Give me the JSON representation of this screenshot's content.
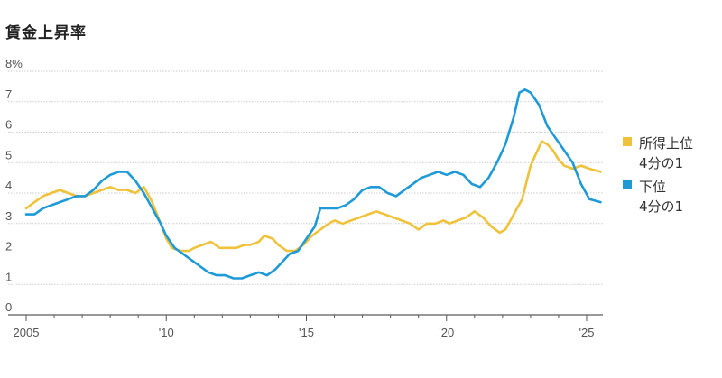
{
  "title": "賃金上昇率",
  "chart_data": {
    "type": "line",
    "title": "賃金上昇率",
    "xlim": [
      2005,
      2025.7
    ],
    "ylim": [
      0,
      8
    ],
    "x_ticks": [
      {
        "value": 2005,
        "label": "2005"
      },
      {
        "value": 2010,
        "label": "'10"
      },
      {
        "value": 2015,
        "label": "'15"
      },
      {
        "value": 2020,
        "label": "'20"
      },
      {
        "value": 2025,
        "label": "'25"
      }
    ],
    "y_ticks": [
      {
        "value": 0,
        "label": "0"
      },
      {
        "value": 1,
        "label": "1"
      },
      {
        "value": 2,
        "label": "2"
      },
      {
        "value": 3,
        "label": "3"
      },
      {
        "value": 4,
        "label": "4"
      },
      {
        "value": 5,
        "label": "5"
      },
      {
        "value": 6,
        "label": "6"
      },
      {
        "value": 7,
        "label": "7"
      },
      {
        "value": 8,
        "label": "8%"
      }
    ],
    "grid": "horizontal",
    "legend_position": "right",
    "series": [
      {
        "name": "所得上位\n4分の1",
        "color": "#f0c23b",
        "points": [
          [
            2005.0,
            3.5
          ],
          [
            2005.3,
            3.7
          ],
          [
            2005.6,
            3.9
          ],
          [
            2005.9,
            4.0
          ],
          [
            2006.2,
            4.1
          ],
          [
            2006.5,
            4.0
          ],
          [
            2006.8,
            3.9
          ],
          [
            2007.1,
            3.9
          ],
          [
            2007.4,
            4.0
          ],
          [
            2007.7,
            4.1
          ],
          [
            2008.0,
            4.2
          ],
          [
            2008.3,
            4.1
          ],
          [
            2008.6,
            4.1
          ],
          [
            2008.9,
            4.0
          ],
          [
            2009.2,
            4.2
          ],
          [
            2009.5,
            3.7
          ],
          [
            2009.8,
            3.0
          ],
          [
            2010.0,
            2.5
          ],
          [
            2010.2,
            2.2
          ],
          [
            2010.5,
            2.1
          ],
          [
            2010.8,
            2.1
          ],
          [
            2011.0,
            2.2
          ],
          [
            2011.3,
            2.3
          ],
          [
            2011.6,
            2.4
          ],
          [
            2011.9,
            2.2
          ],
          [
            2012.2,
            2.2
          ],
          [
            2012.5,
            2.2
          ],
          [
            2012.8,
            2.3
          ],
          [
            2013.0,
            2.3
          ],
          [
            2013.3,
            2.4
          ],
          [
            2013.5,
            2.6
          ],
          [
            2013.8,
            2.5
          ],
          [
            2014.0,
            2.3
          ],
          [
            2014.3,
            2.1
          ],
          [
            2014.6,
            2.1
          ],
          [
            2014.9,
            2.3
          ],
          [
            2015.2,
            2.6
          ],
          [
            2015.5,
            2.8
          ],
          [
            2015.8,
            3.0
          ],
          [
            2016.0,
            3.1
          ],
          [
            2016.3,
            3.0
          ],
          [
            2016.6,
            3.1
          ],
          [
            2016.9,
            3.2
          ],
          [
            2017.2,
            3.3
          ],
          [
            2017.5,
            3.4
          ],
          [
            2017.8,
            3.3
          ],
          [
            2018.1,
            3.2
          ],
          [
            2018.4,
            3.1
          ],
          [
            2018.7,
            3.0
          ],
          [
            2019.0,
            2.8
          ],
          [
            2019.3,
            3.0
          ],
          [
            2019.6,
            3.0
          ],
          [
            2019.9,
            3.1
          ],
          [
            2020.1,
            3.0
          ],
          [
            2020.4,
            3.1
          ],
          [
            2020.7,
            3.2
          ],
          [
            2021.0,
            3.4
          ],
          [
            2021.3,
            3.2
          ],
          [
            2021.6,
            2.9
          ],
          [
            2021.9,
            2.7
          ],
          [
            2022.1,
            2.8
          ],
          [
            2022.4,
            3.3
          ],
          [
            2022.7,
            3.8
          ],
          [
            2023.0,
            4.9
          ],
          [
            2023.2,
            5.3
          ],
          [
            2023.4,
            5.7
          ],
          [
            2023.6,
            5.6
          ],
          [
            2023.8,
            5.4
          ],
          [
            2024.0,
            5.1
          ],
          [
            2024.2,
            4.9
          ],
          [
            2024.5,
            4.8
          ],
          [
            2024.8,
            4.9
          ],
          [
            2025.1,
            4.8
          ],
          [
            2025.5,
            4.7
          ]
        ]
      },
      {
        "name": "下位\n4分の1",
        "color": "#1e9ad6",
        "points": [
          [
            2005.0,
            3.3
          ],
          [
            2005.3,
            3.3
          ],
          [
            2005.6,
            3.5
          ],
          [
            2005.9,
            3.6
          ],
          [
            2006.2,
            3.7
          ],
          [
            2006.5,
            3.8
          ],
          [
            2006.8,
            3.9
          ],
          [
            2007.1,
            3.9
          ],
          [
            2007.4,
            4.1
          ],
          [
            2007.7,
            4.4
          ],
          [
            2008.0,
            4.6
          ],
          [
            2008.3,
            4.7
          ],
          [
            2008.6,
            4.7
          ],
          [
            2008.9,
            4.4
          ],
          [
            2009.2,
            4.0
          ],
          [
            2009.5,
            3.5
          ],
          [
            2009.8,
            3.0
          ],
          [
            2010.0,
            2.6
          ],
          [
            2010.3,
            2.2
          ],
          [
            2010.6,
            2.0
          ],
          [
            2010.9,
            1.8
          ],
          [
            2011.2,
            1.6
          ],
          [
            2011.5,
            1.4
          ],
          [
            2011.8,
            1.3
          ],
          [
            2012.1,
            1.3
          ],
          [
            2012.4,
            1.2
          ],
          [
            2012.7,
            1.2
          ],
          [
            2013.0,
            1.3
          ],
          [
            2013.3,
            1.4
          ],
          [
            2013.6,
            1.3
          ],
          [
            2013.9,
            1.5
          ],
          [
            2014.1,
            1.7
          ],
          [
            2014.4,
            2.0
          ],
          [
            2014.7,
            2.1
          ],
          [
            2015.0,
            2.5
          ],
          [
            2015.3,
            2.9
          ],
          [
            2015.5,
            3.5
          ],
          [
            2015.8,
            3.5
          ],
          [
            2016.1,
            3.5
          ],
          [
            2016.4,
            3.6
          ],
          [
            2016.7,
            3.8
          ],
          [
            2017.0,
            4.1
          ],
          [
            2017.3,
            4.2
          ],
          [
            2017.6,
            4.2
          ],
          [
            2017.9,
            4.0
          ],
          [
            2018.2,
            3.9
          ],
          [
            2018.5,
            4.1
          ],
          [
            2018.8,
            4.3
          ],
          [
            2019.1,
            4.5
          ],
          [
            2019.4,
            4.6
          ],
          [
            2019.7,
            4.7
          ],
          [
            2020.0,
            4.6
          ],
          [
            2020.3,
            4.7
          ],
          [
            2020.6,
            4.6
          ],
          [
            2020.9,
            4.3
          ],
          [
            2021.2,
            4.2
          ],
          [
            2021.5,
            4.5
          ],
          [
            2021.8,
            5.0
          ],
          [
            2022.1,
            5.6
          ],
          [
            2022.4,
            6.5
          ],
          [
            2022.6,
            7.3
          ],
          [
            2022.8,
            7.4
          ],
          [
            2023.0,
            7.3
          ],
          [
            2023.3,
            6.9
          ],
          [
            2023.6,
            6.2
          ],
          [
            2023.9,
            5.8
          ],
          [
            2024.2,
            5.4
          ],
          [
            2024.5,
            5.0
          ],
          [
            2024.8,
            4.3
          ],
          [
            2025.1,
            3.8
          ],
          [
            2025.5,
            3.7
          ]
        ]
      }
    ]
  }
}
